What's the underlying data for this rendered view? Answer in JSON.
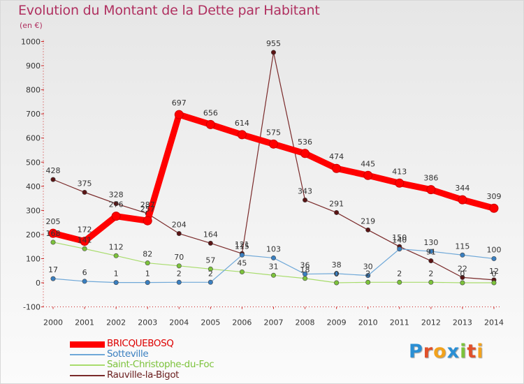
{
  "header": {
    "title": "Evolution du Montant de la Dette par Habitant",
    "subtitle": "(en €)"
  },
  "logo": {
    "letters": [
      "P",
      "r",
      "o",
      "x",
      "i",
      "t",
      "i"
    ],
    "colors": [
      "#2a8fd4",
      "#e0502a",
      "#f2a21c",
      "#2a8fd4",
      "#7cc23b",
      "#e0502a",
      "#f2a21c"
    ]
  },
  "chart_data": {
    "type": "line",
    "title": "Evolution du Montant de la Dette par Habitant",
    "subtitle": "(en €)",
    "xlabel": "",
    "ylabel": "",
    "x": [
      2000,
      2001,
      2002,
      2003,
      2004,
      2005,
      2006,
      2007,
      2008,
      2009,
      2010,
      2011,
      2012,
      2013,
      2014
    ],
    "ylim": [
      -100,
      1000
    ],
    "yticks": [
      -100,
      0,
      100,
      200,
      300,
      400,
      500,
      600,
      700,
      800,
      900,
      1000
    ],
    "grid": false,
    "legend_position": "bottom-left",
    "series": [
      {
        "name": "BRICQUEBOSQ",
        "color": "#ff0000",
        "marker_color": "#ff0000",
        "values": [
          205,
          172,
          276,
          257,
          697,
          656,
          614,
          575,
          536,
          474,
          445,
          413,
          386,
          344,
          309
        ],
        "labels": [
          "205",
          "172",
          "276",
          "257",
          "697",
          "656",
          "614",
          "575",
          "536",
          "474",
          "445",
          "413",
          "386",
          "344",
          "309"
        ]
      },
      {
        "name": "Sotteville",
        "color": "#6fa8d8",
        "marker_color": "#3a7fc0",
        "values": [
          17,
          6,
          1,
          1,
          2,
          2,
          115,
          103,
          36,
          38,
          30,
          140,
          130,
          115,
          100
        ],
        "labels": [
          "17",
          "6",
          "1",
          "1",
          "2",
          "2",
          "115",
          "103",
          "36",
          "38",
          "30",
          "140",
          "130",
          "115",
          "100"
        ]
      },
      {
        "name": "Saint-Christophe-du-Foc",
        "color": "#a8dc6c",
        "marker_color": "#7cc23b",
        "values": [
          168,
          141,
          112,
          82,
          70,
          57,
          45,
          31,
          18,
          0,
          2,
          2,
          2,
          0,
          0
        ],
        "labels": [
          "168",
          "141",
          "112",
          "82",
          "70",
          "57",
          "45",
          "31",
          "18",
          "0",
          "2",
          "2",
          "2",
          "0",
          "0"
        ]
      },
      {
        "name": "Rauville-la-Bigot",
        "color": "#7a2a2a",
        "marker_color": "#5a1414",
        "values": [
          428,
          375,
          328,
          287,
          204,
          164,
          121,
          955,
          343,
          291,
          219,
          150,
          91,
          22,
          12
        ],
        "labels": [
          "428",
          "375",
          "328",
          "287",
          "204",
          "164",
          "121",
          "955",
          "343",
          "291",
          "219",
          "150",
          "91",
          "22",
          "12"
        ]
      }
    ]
  }
}
